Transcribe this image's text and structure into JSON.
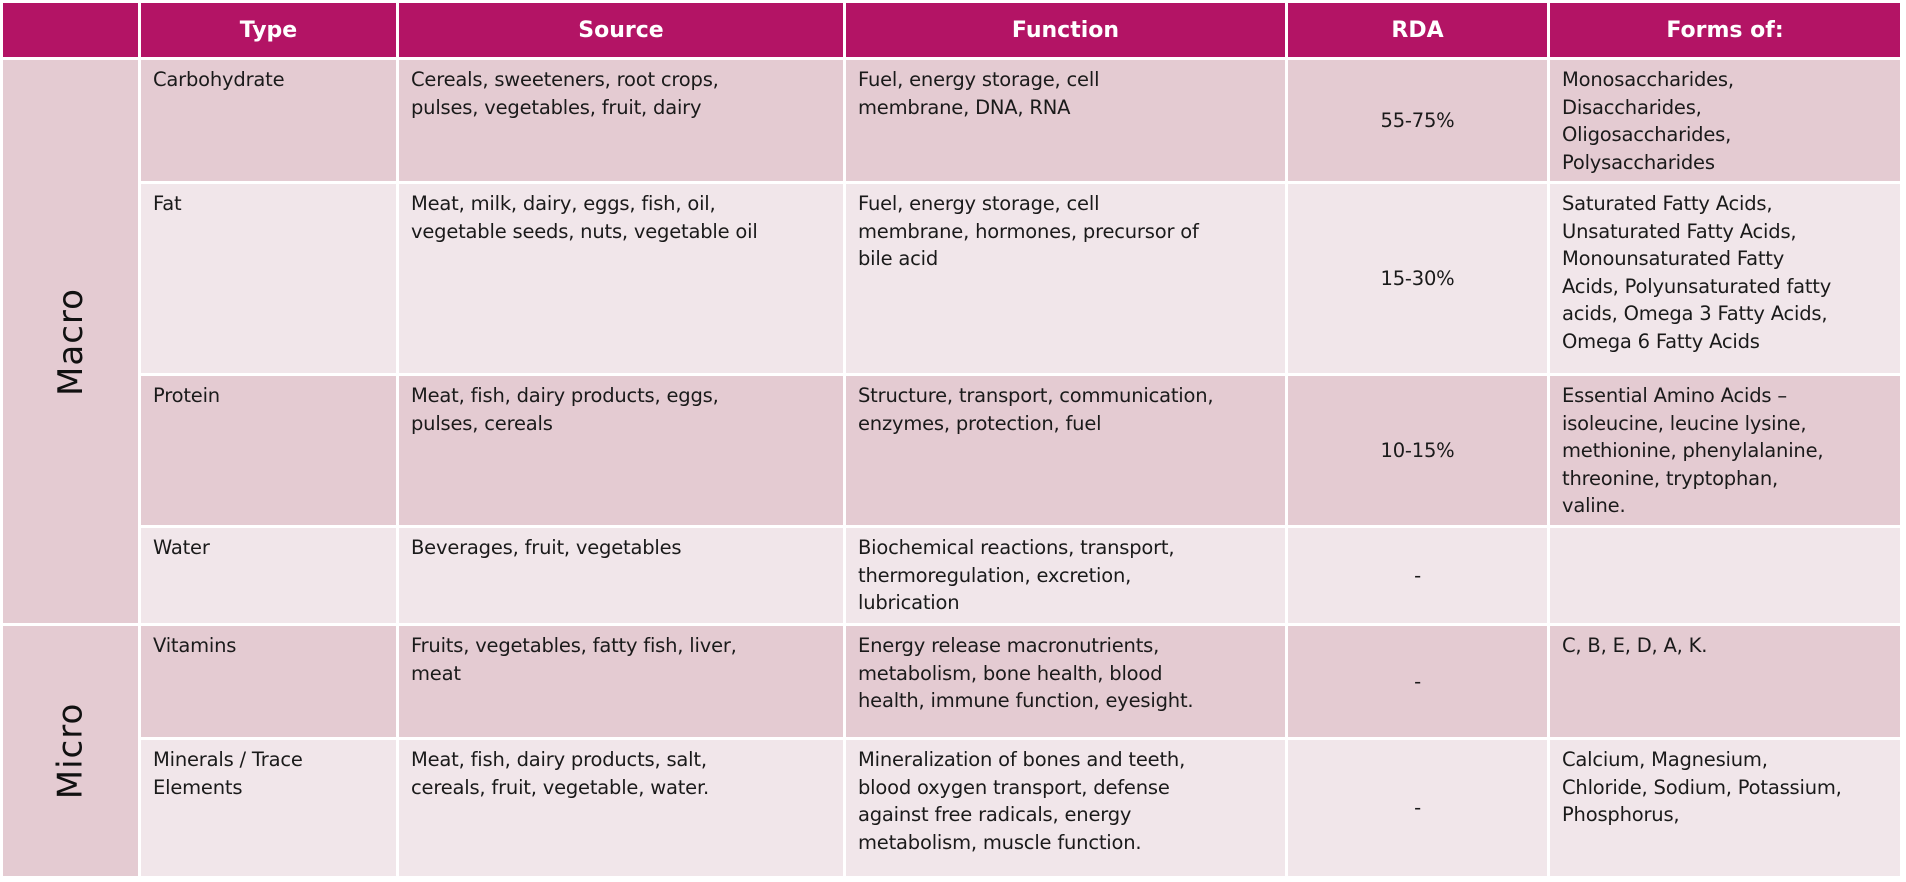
{
  "colors": {
    "header": "#B31465",
    "row_dark": "#E4CBD2",
    "row_light": "#F1E6EA",
    "header_text": "#FFFFFF"
  },
  "table": {
    "headers": [
      "",
      "Type",
      "Source",
      "Function",
      "RDA",
      "Forms of:"
    ],
    "groups": [
      {
        "label": "Macro"
      },
      {
        "label": "Micro"
      }
    ],
    "rows": [
      {
        "type": "Carbohydrate",
        "source": "Cereals, sweeteners, root crops,\npulses, vegetables, fruit, dairy",
        "function": "Fuel, energy storage, cell\nmembrane, DNA, RNA",
        "rda": "55-75%",
        "forms": "Monosaccharides,\nDisaccharides,\nOligosaccharides,\nPolysaccharides"
      },
      {
        "type": "Fat",
        "source": "Meat, milk, dairy, eggs, fish, oil,\nvegetable seeds, nuts, vegetable oil",
        "function": "Fuel, energy storage, cell\nmembrane, hormones, precursor of\nbile acid",
        "rda": "15-30%",
        "forms": "Saturated Fatty Acids,\nUnsaturated Fatty Acids,\nMonounsaturated Fatty\nAcids, Polyunsaturated fatty\nacids, Omega 3 Fatty Acids,\nOmega 6 Fatty Acids"
      },
      {
        "type": "Protein",
        "source": "Meat, fish, dairy products, eggs,\npulses, cereals",
        "function": "Structure, transport, communication,\nenzymes, protection, fuel",
        "rda": "10-15%",
        "forms": "Essential Amino Acids –\nisoleucine, leucine lysine,\nmethionine, phenylalanine,\nthreonine, tryptophan,\nvaline."
      },
      {
        "type": "Water",
        "source": "Beverages, fruit, vegetables",
        "function": "Biochemical reactions, transport,\nthermoregulation, excretion,\nlubrication",
        "rda": "-",
        "forms": ""
      },
      {
        "type": "Vitamins",
        "source": "Fruits, vegetables, fatty fish, liver,\nmeat",
        "function": "Energy release macronutrients,\nmetabolism, bone health, blood\nhealth, immune function, eyesight.",
        "rda": "-",
        "forms": "C, B, E, D, A, K."
      },
      {
        "type": "Minerals / Trace\nElements",
        "source": "Meat, fish, dairy products, salt,\ncereals, fruit, vegetable, water.",
        "function": "Mineralization of bones and teeth,\nblood oxygen transport, defense\nagainst free radicals, energy\nmetabolism, muscle function.",
        "rda": "-",
        "forms": "Calcium, Magnesium,\nChloride, Sodium, Potassium,\nPhosphorus,"
      }
    ]
  }
}
